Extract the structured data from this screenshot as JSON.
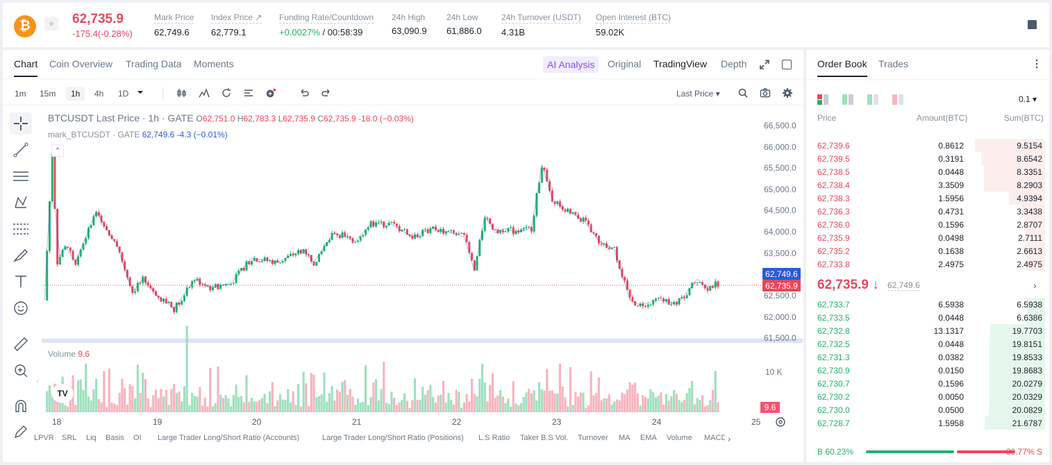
{
  "header": {
    "coin_symbol": "₿",
    "last_price": "62,735.9",
    "change": "-175.4(-0.28%)",
    "stats": [
      {
        "label": "Mark Price",
        "value": "62,749.6"
      },
      {
        "label": "Index Price ↗",
        "value": "62,779.1"
      },
      {
        "label": "Funding Rate/Countdown",
        "value_rate": "+0.0027%",
        "value_countdown": "/ 00:58:39"
      },
      {
        "label": "24h High",
        "value": "63,090.9"
      },
      {
        "label": "24h Low",
        "value": "61,886.0"
      },
      {
        "label": "24h Turnover (USDT)",
        "value": "4.31B"
      },
      {
        "label": "Open Interest (BTC)",
        "value": "59.02K"
      }
    ]
  },
  "tabs": [
    "Chart",
    "Coin Overview",
    "Trading Data",
    "Moments"
  ],
  "ai_analysis": "A͏I Analysis",
  "view_tabs": [
    "Original",
    "TradingView",
    "Depth"
  ],
  "intervals": [
    "1m",
    "15m",
    "1h",
    "4h",
    "1D"
  ],
  "price_type": "Last Price",
  "legend": {
    "title": "BTCUSDT Last Price · 1h · GATE",
    "o": "O",
    "o_val": "62,751.0",
    "h": "H",
    "h_val": "62,783.3",
    "l": "L",
    "l_val": "62,735.9",
    "c": "C",
    "c_val": "62,735.9",
    "chg": "-18.0 (−0.03%)",
    "mark": "mark_BTCUSDT · GATE",
    "mark_vals": "62,749.6  -4.3  (−0.01%)"
  },
  "volume_legend": {
    "label": "Volume",
    "value": "9.6"
  },
  "y_ticks": [
    "66,500.0",
    "66,000.0",
    "65,500.0",
    "65,000.0",
    "64,500.0",
    "64,000.0",
    "63,500.0",
    "62,500.0",
    "62,000.0",
    "61,500.0"
  ],
  "price_tags": {
    "mark": "62,749.6",
    "last": "62,735.9"
  },
  "vol_tick": "10 K",
  "vol_tag": "9.6",
  "x_ticks": [
    "18",
    "19",
    "20",
    "21",
    "22",
    "23",
    "24",
    "25"
  ],
  "indicators": [
    "LPVR",
    "SRL",
    "Liq",
    "Basis",
    "OI",
    "Large Trader Long/Short Ratio (Accounts)",
    "Large Trader Long/Short Ratio (Positions)",
    "L.S Ratio",
    "Taker B.S Vol.",
    "Turnover",
    "MA",
    "EMA",
    "Volume",
    "MACD"
  ],
  "colors": {
    "up": "#20b26c",
    "down": "#e8475a",
    "accent": "#8a4bff",
    "mark": "#2a5bd7"
  },
  "chart_data": {
    "type": "candlestick",
    "title": "BTCUSDT Last Price · 1h · GATE",
    "x_range": [
      "18",
      "25"
    ],
    "ylim": [
      61500,
      66600
    ],
    "grid": false,
    "close_path": [
      [
        0,
        62400
      ],
      [
        3,
        65900
      ],
      [
        5,
        63300
      ],
      [
        8,
        63700
      ],
      [
        12,
        63300
      ],
      [
        20,
        64500
      ],
      [
        28,
        63700
      ],
      [
        34,
        62600
      ],
      [
        38,
        62900
      ],
      [
        44,
        62500
      ],
      [
        50,
        62200
      ],
      [
        58,
        62900
      ],
      [
        64,
        62700
      ],
      [
        72,
        62800
      ],
      [
        80,
        63400
      ],
      [
        90,
        63300
      ],
      [
        100,
        63600
      ],
      [
        104,
        63300
      ],
      [
        112,
        64000
      ],
      [
        120,
        63800
      ],
      [
        126,
        64200
      ],
      [
        134,
        64200
      ],
      [
        142,
        63900
      ],
      [
        150,
        64100
      ],
      [
        156,
        64000
      ],
      [
        162,
        63900
      ],
      [
        166,
        63100
      ],
      [
        170,
        64400
      ],
      [
        174,
        64000
      ],
      [
        178,
        64100
      ],
      [
        182,
        64000
      ],
      [
        188,
        64100
      ],
      [
        192,
        65600
      ],
      [
        196,
        64800
      ],
      [
        202,
        64500
      ],
      [
        208,
        64300
      ],
      [
        214,
        63800
      ],
      [
        220,
        63600
      ],
      [
        226,
        62400
      ],
      [
        230,
        62300
      ],
      [
        236,
        62400
      ],
      [
        240,
        62400
      ],
      [
        244,
        62300
      ],
      [
        248,
        62600
      ],
      [
        252,
        62900
      ],
      [
        256,
        62700
      ],
      [
        260,
        62800
      ]
    ]
  },
  "order_book": {
    "tabs": [
      "Order Book",
      "Trades"
    ],
    "step": "0.1 ▾",
    "headers": [
      "Price",
      "Amount(BTC)",
      "Sum(BTC)"
    ],
    "asks": [
      [
        "62,739.6",
        "0.8612",
        "9.5154"
      ],
      [
        "62,739.5",
        "0.3191",
        "8.6542"
      ],
      [
        "62,738.5",
        "0.0448",
        "8.3351"
      ],
      [
        "62,738.4",
        "3.3509",
        "8.2903"
      ],
      [
        "62,738.3",
        "1.5956",
        "4.9394"
      ],
      [
        "62,736.3",
        "0.4731",
        "3.3438"
      ],
      [
        "62,736.0",
        "0.1596",
        "2.8707"
      ],
      [
        "62,735.9",
        "0.0498",
        "2.7111"
      ],
      [
        "62,735.2",
        "0.1638",
        "2.6613"
      ],
      [
        "62,733.8",
        "2.4975",
        "2.4975"
      ]
    ],
    "mid_price": "62,735.9 ↓",
    "mid_mark": "62,749.6",
    "bids": [
      [
        "62,733.7",
        "6.5938",
        "6.5938"
      ],
      [
        "62,733.5",
        "0.0448",
        "6.6386"
      ],
      [
        "62,732.8",
        "13.1317",
        "19.7703"
      ],
      [
        "62,732.5",
        "0.0448",
        "19.8151"
      ],
      [
        "62,731.3",
        "0.0382",
        "19.8533"
      ],
      [
        "62,730.9",
        "0.0150",
        "19.8683"
      ],
      [
        "62,730.7",
        "0.1596",
        "20.0279"
      ],
      [
        "62,730.2",
        "0.0050",
        "20.0329"
      ],
      [
        "62,730.0",
        "0.0500",
        "20.0829"
      ],
      [
        "62,728.7",
        "1.5958",
        "21.6787"
      ]
    ],
    "buy_ratio": "B 60.23%",
    "sell_ratio": "39.77% S"
  }
}
